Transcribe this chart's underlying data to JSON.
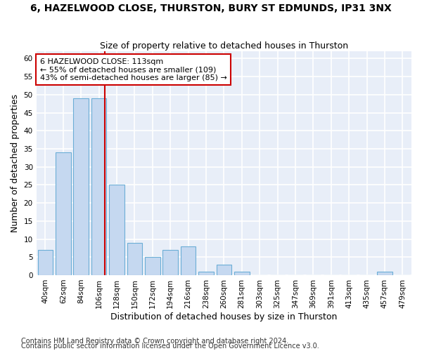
{
  "title": "6, HAZELWOOD CLOSE, THURSTON, BURY ST EDMUNDS, IP31 3NX",
  "subtitle": "Size of property relative to detached houses in Thurston",
  "xlabel": "Distribution of detached houses by size in Thurston",
  "ylabel": "Number of detached properties",
  "categories": [
    "40sqm",
    "62sqm",
    "84sqm",
    "106sqm",
    "128sqm",
    "150sqm",
    "172sqm",
    "194sqm",
    "216sqm",
    "238sqm",
    "260sqm",
    "281sqm",
    "303sqm",
    "325sqm",
    "347sqm",
    "369sqm",
    "391sqm",
    "413sqm",
    "435sqm",
    "457sqm",
    "479sqm"
  ],
  "values": [
    7,
    34,
    49,
    49,
    25,
    9,
    5,
    7,
    8,
    1,
    3,
    1,
    0,
    0,
    0,
    0,
    0,
    0,
    0,
    1,
    0
  ],
  "bar_color": "#c5d8f0",
  "bar_edgecolor": "#6baed6",
  "vline_color": "#cc0000",
  "annotation_text": "6 HAZELWOOD CLOSE: 113sqm\n← 55% of detached houses are smaller (109)\n43% of semi-detached houses are larger (85) →",
  "annotation_box_edgecolor": "#cc0000",
  "annotation_box_facecolor": "#ffffff",
  "ylim": [
    0,
    62
  ],
  "yticks": [
    0,
    5,
    10,
    15,
    20,
    25,
    30,
    35,
    40,
    45,
    50,
    55,
    60
  ],
  "background_color": "#ffffff",
  "plot_bg_color": "#e8eef8",
  "grid_color": "#ffffff",
  "footnote1": "Contains HM Land Registry data © Crown copyright and database right 2024.",
  "footnote2": "Contains public sector information licensed under the Open Government Licence v3.0.",
  "title_fontsize": 10,
  "subtitle_fontsize": 9,
  "axis_label_fontsize": 9,
  "tick_fontsize": 7.5,
  "annotation_fontsize": 8,
  "footnote_fontsize": 7
}
